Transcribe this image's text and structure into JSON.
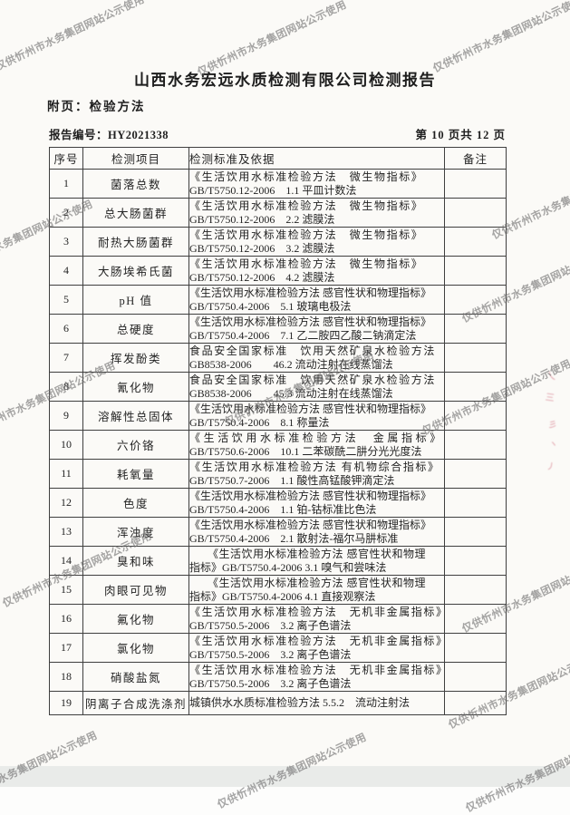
{
  "page": {
    "title": "山西水务宏远水质检测有限公司检测报告",
    "appendix": "附页：检验方法",
    "report_no": "报告编号：HY2021338",
    "page_indicator": "第 10 页共 12 页"
  },
  "watermark_text": "仅供忻州市水务集团网站公示使用",
  "colors": {
    "watermark_gray": "#6e6e6e",
    "seal_red": "#c9566b",
    "scan_band_gray": "#e9ebe9"
  },
  "table": {
    "headers": {
      "no": "序号",
      "item": "检测项目",
      "standard": "检测标准及依据",
      "remark": "备注"
    },
    "rows": [
      {
        "no": "1",
        "item": "菌落总数",
        "std1": "《生活饮用水标准检验方法　微生物指标》",
        "std2": "GB/T5750.12-2006　1.1 平皿计数法",
        "style": "wide",
        "remark": ""
      },
      {
        "no": "2",
        "item": "总大肠菌群",
        "std1": "《生活饮用水标准检验方法　微生物指标》",
        "std2": "GB/T5750.12-2006　2.2 滤膜法",
        "style": "wide",
        "remark": ""
      },
      {
        "no": "3",
        "item": "耐热大肠菌群",
        "std1": "《生活饮用水标准检验方法　微生物指标》",
        "std2": "GB/T5750.12-2006　3.2 滤膜法",
        "style": "wide",
        "remark": ""
      },
      {
        "no": "4",
        "item": "大肠埃希氏菌",
        "std1": "《生活饮用水标准检验方法　微生物指标》",
        "std2": "GB/T5750.12-2006　4.2 滤膜法",
        "style": "wide",
        "remark": ""
      },
      {
        "no": "5",
        "item": "pH 值",
        "std1": "《生活饮用水标准检验方法 感官性状和物理指标》",
        "std2": "GB/T5750.4-2006　5.1 玻璃电极法",
        "style": "normal",
        "remark": ""
      },
      {
        "no": "6",
        "item": "总硬度",
        "std1": "《生活饮用水标准检验方法 感官性状和物理指标》",
        "std2": "GB/T5750.4-2006　7.1 乙二胺四乙酸二钠滴定法",
        "style": "normal",
        "remark": ""
      },
      {
        "no": "7",
        "item": "挥发酚类",
        "std1": "食品安全国家标准　饮用天然矿泉水检验方法",
        "std2": "GB8538-2006　　46.2 流动注射在线蒸馏法",
        "style": "wide",
        "remark": ""
      },
      {
        "no": "8",
        "item": "氰化物",
        "std1": "食品安全国家标准　饮用天然矿泉水检验方法",
        "std2": "GB8538-2006　　45.3 流动注射在线蒸馏法",
        "style": "wide",
        "remark": ""
      },
      {
        "no": "9",
        "item": "溶解性总固体",
        "std1": "《生活饮用水标准检验方法 感官性状和物理指标》",
        "std2": "GB/T5750.4-2006　8.1 称量法",
        "style": "normal",
        "remark": ""
      },
      {
        "no": "10",
        "item": "六价铬",
        "std1": "《生活饮用水标准检验方法　金属指标》",
        "std2": "GB/T5750.6-2006　10.1 二苯碳酰二肼分光光度法",
        "style": "xwide",
        "remark": ""
      },
      {
        "no": "11",
        "item": "耗氧量",
        "std1": "《生活饮用水标准检验方法 有机物综合指标》",
        "std2": "GB/T5750.7-2006　1.1 酸性高锰酸钾滴定法",
        "style": "wide",
        "remark": ""
      },
      {
        "no": "12",
        "item": "色度",
        "std1": "《生活饮用水标准检验方法 感官性状和物理指标》",
        "std2": "GB/T5750.4-2006　1.1 铂-钴标准比色法",
        "style": "normal",
        "remark": ""
      },
      {
        "no": "13",
        "item": "浑浊度",
        "std1": "《生活饮用水标准检验方法 感官性状和物理指标》",
        "std2": "GB/T5750.4-2006　2.1 散射法-福尔马肼标准",
        "style": "normal",
        "remark": ""
      },
      {
        "no": "14",
        "item": "臭和味",
        "std1": "《生活饮用水标准检验方法 感官性状和物理",
        "std2": "指标》GB/T5750.4-2006 3.1 嗅气和尝味法",
        "style": "center",
        "remark": ""
      },
      {
        "no": "15",
        "item": "肉眼可见物",
        "std1": "《生活饮用水标准检验方法 感官性状和物理",
        "std2": "指标》GB/T5750.4-2006 4.1 直接观察法",
        "style": "center",
        "remark": ""
      },
      {
        "no": "16",
        "item": "氟化物",
        "std1": "《生活饮用水标准检验方法　无机非金属指标》",
        "std2": "GB/T5750.5-2006　3.2 离子色谱法",
        "style": "wide",
        "remark": ""
      },
      {
        "no": "17",
        "item": "氯化物",
        "std1": "《生活饮用水标准检验方法　无机非金属指标》",
        "std2": "GB/T5750.5-2006　3.2 离子色谱法",
        "style": "wide",
        "remark": ""
      },
      {
        "no": "18",
        "item": "硝酸盐氮",
        "std1": "《生活饮用水标准检验方法　无机非金属指标》",
        "std2": "GB/T5750.5-2006　3.2 离子色谱法",
        "style": "wide",
        "remark": ""
      },
      {
        "no": "19",
        "item": "阴离子合成洗涤剂",
        "std1": "城镇供水水质标准检验方法 5.5.2　流动注射法",
        "std2": null,
        "style": "normal",
        "remark": ""
      }
    ]
  }
}
